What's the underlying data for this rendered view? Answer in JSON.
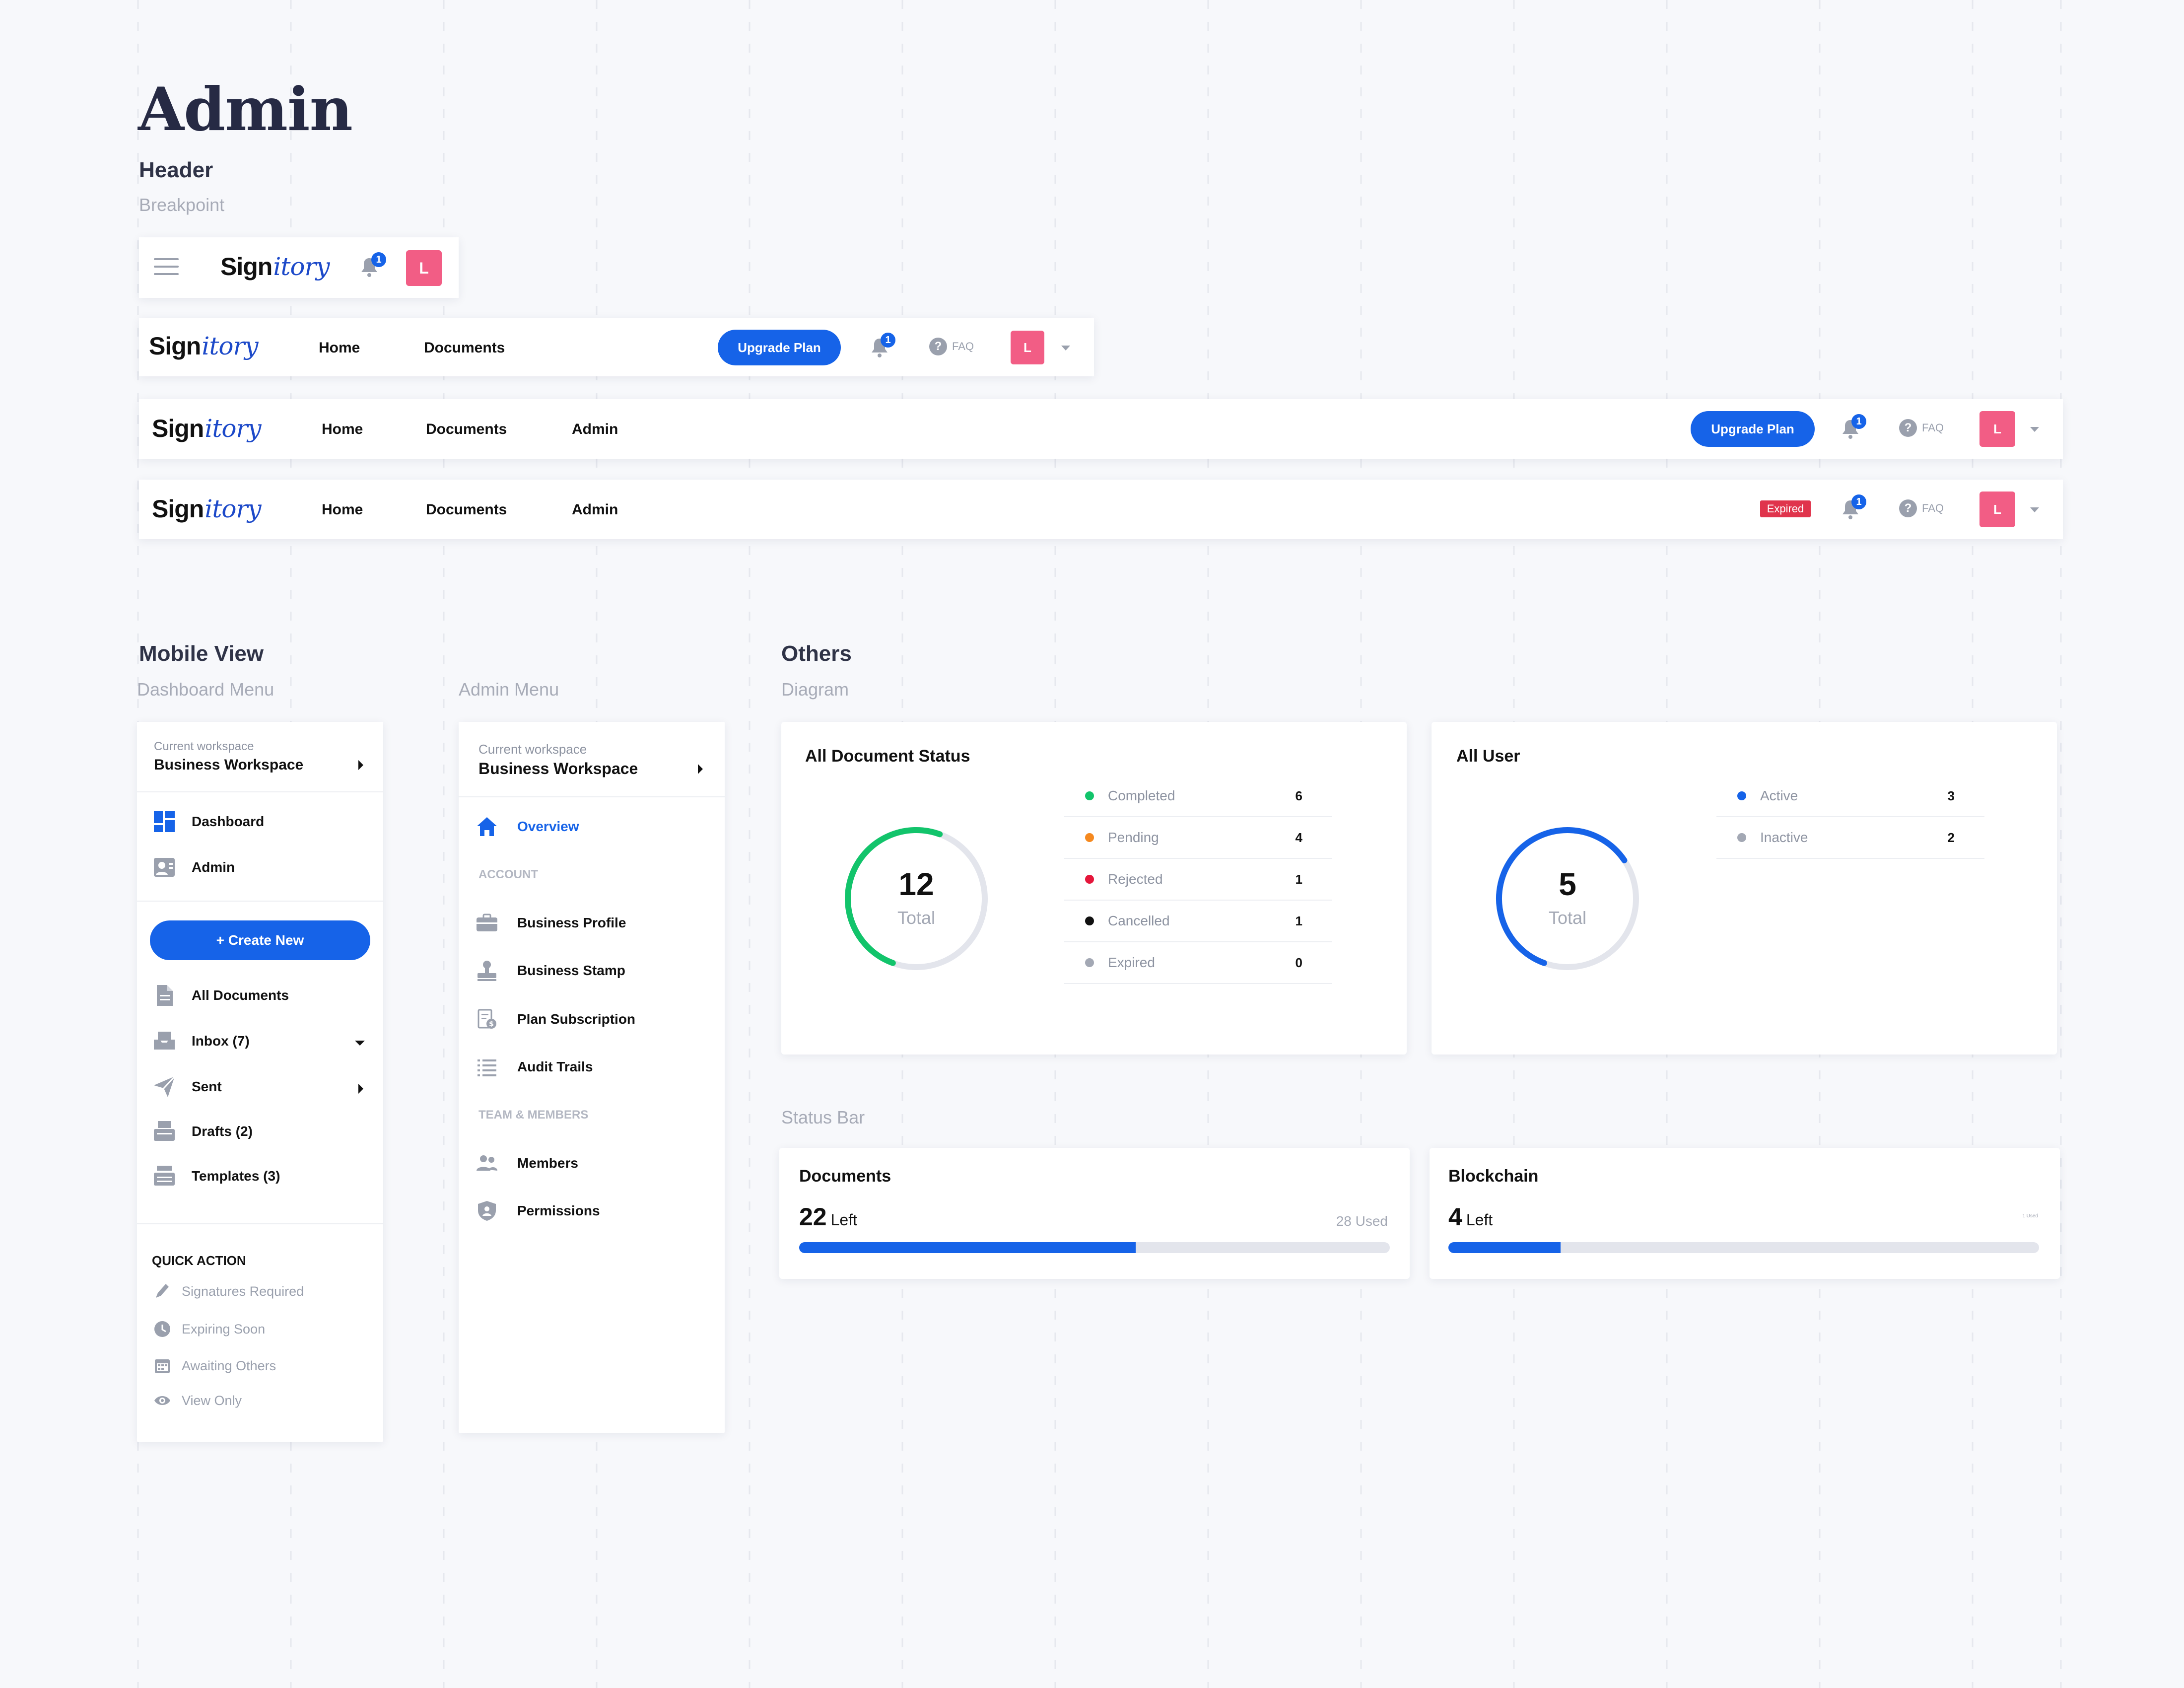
{
  "page": {
    "title": "Admin",
    "section_header": "Header",
    "section_header_sub": "Breakpoint"
  },
  "brand": {
    "name_bold": "Sign",
    "name_italic": "itory"
  },
  "headers": {
    "home": "Home",
    "documents": "Documents",
    "admin": "Admin",
    "upgrade": "Upgrade Plan",
    "faq": "FAQ",
    "expired": "Expired",
    "notif_count": "1",
    "avatar_letter": "L"
  },
  "sections": {
    "mobile_view": "Mobile View",
    "dashboard_menu": "Dashboard Menu",
    "admin_menu": "Admin Menu",
    "others": "Others",
    "diagram": "Diagram",
    "status_bar": "Status Bar"
  },
  "dashboard_menu": {
    "workspace_label": "Current workspace",
    "workspace_name": "Business Workspace",
    "dashboard": "Dashboard",
    "admin": "Admin",
    "create_new": "+ Create New",
    "all_documents": "All Documents",
    "inbox": "Inbox (7)",
    "sent": "Sent",
    "drafts": "Drafts (2)",
    "templates": "Templates (3)",
    "quick_action": "QUICK ACTION",
    "signatures_required": "Signatures Required",
    "expiring_soon": "Expiring Soon",
    "awaiting_others": "Awaiting Others",
    "view_only": "View Only"
  },
  "admin_menu": {
    "workspace_label": "Current workspace",
    "workspace_name": "Business Workspace",
    "overview": "Overview",
    "account": "ACCOUNT",
    "business_profile": "Business Profile",
    "business_stamp": "Business Stamp",
    "plan_subscription": "Plan Subscription",
    "audit_trails": "Audit Trails",
    "team_members": "TEAM & MEMBERS",
    "members": "Members",
    "permissions": "Permissions"
  },
  "doc_status": {
    "title": "All Document Status",
    "total": "12",
    "total_label": "Total",
    "items": [
      {
        "label": "Completed",
        "value": "6",
        "color": "#12c46b"
      },
      {
        "label": "Pending",
        "value": "4",
        "color": "#f5891f"
      },
      {
        "label": "Rejected",
        "value": "1",
        "color": "#e5163b"
      },
      {
        "label": "Cancelled",
        "value": "1",
        "color": "#111111"
      },
      {
        "label": "Expired",
        "value": "0",
        "color": "#a3a8b4"
      }
    ]
  },
  "user_status": {
    "title": "All User",
    "total": "5",
    "total_label": "Total",
    "items": [
      {
        "label": "Active",
        "value": "3",
        "color": "#1663e8"
      },
      {
        "label": "Inactive",
        "value": "2",
        "color": "#a3a8b4"
      }
    ]
  },
  "status_bars": {
    "documents": {
      "title": "Documents",
      "left_num": "22",
      "left_label": "Left",
      "used": "28 Used",
      "fill_fraction": 0.57
    },
    "blockchain": {
      "title": "Blockchain",
      "left_num": "4",
      "left_label": "Left",
      "used": "1 Used",
      "fill_fraction": 0.19
    }
  },
  "colors": {
    "accent": "#1663e8",
    "avatar": "#f25d85",
    "green": "#12c46b",
    "track": "#e3e5ec"
  }
}
